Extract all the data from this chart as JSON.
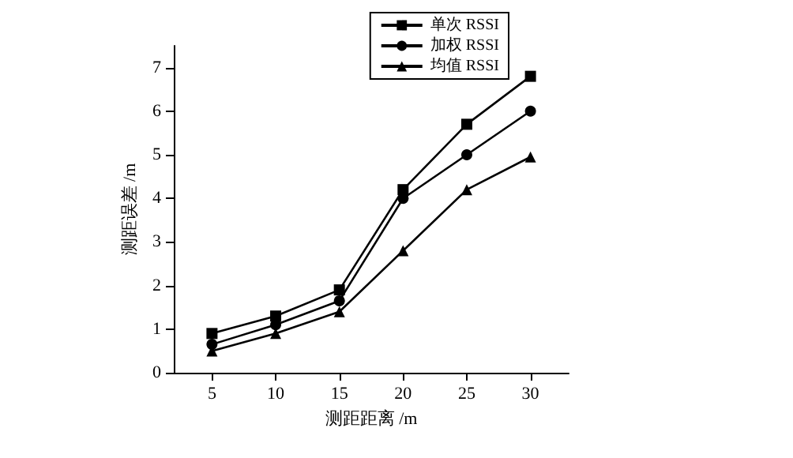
{
  "chart_data": {
    "type": "line",
    "xlabel": "测距距离 /m",
    "ylabel": "测距误差 /m",
    "x": [
      5,
      10,
      15,
      20,
      25,
      30
    ],
    "series": [
      {
        "name": "单次 RSSI",
        "color": "#000000",
        "marker": "square",
        "values": [
          0.9,
          1.3,
          1.9,
          4.2,
          5.7,
          6.8
        ]
      },
      {
        "name": "加权 RSSI",
        "color": "#000000",
        "marker": "circle",
        "values": [
          0.65,
          1.1,
          1.65,
          4.0,
          5.0,
          6.0
        ]
      },
      {
        "name": "均值 RSSI",
        "color": "#000000",
        "marker": "triangle",
        "values": [
          0.5,
          0.9,
          1.4,
          2.8,
          4.2,
          4.95
        ]
      }
    ],
    "xlim": [
      2,
      33
    ],
    "xticks": [
      5,
      10,
      15,
      20,
      25,
      30
    ],
    "ylim": [
      0,
      7.5
    ],
    "yticks": [
      0,
      1,
      2,
      3,
      4,
      5,
      6,
      7
    ],
    "grid": false,
    "legend": "top right",
    "line_style": "solid"
  }
}
